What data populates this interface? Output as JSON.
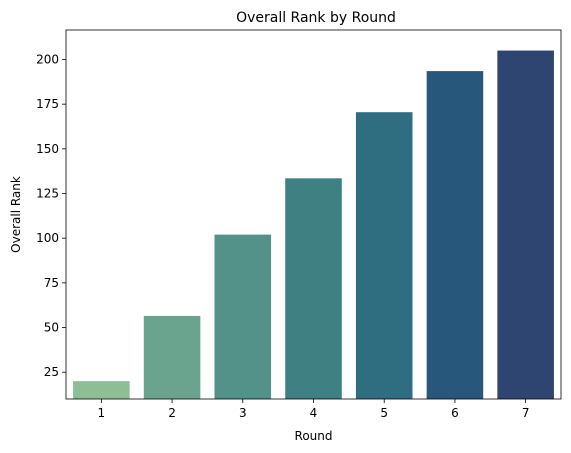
{
  "chart_data": {
    "type": "bar",
    "title": "Overall Rank by Round",
    "xlabel": "Round",
    "ylabel": "Overall Rank",
    "categories": [
      "1",
      "2",
      "3",
      "4",
      "5",
      "6",
      "7"
    ],
    "values": [
      20,
      56.5,
      102,
      133.5,
      170.5,
      193.5,
      205
    ],
    "ylim": [
      10,
      216.5
    ],
    "yticks": [
      25,
      50,
      75,
      100,
      125,
      150,
      175,
      200
    ],
    "colors": [
      "#8dbe96",
      "#6aa48f",
      "#539289",
      "#3f8082",
      "#2f6d80",
      "#27587b",
      "#2f4571"
    ],
    "grid": false,
    "legend": "none"
  }
}
